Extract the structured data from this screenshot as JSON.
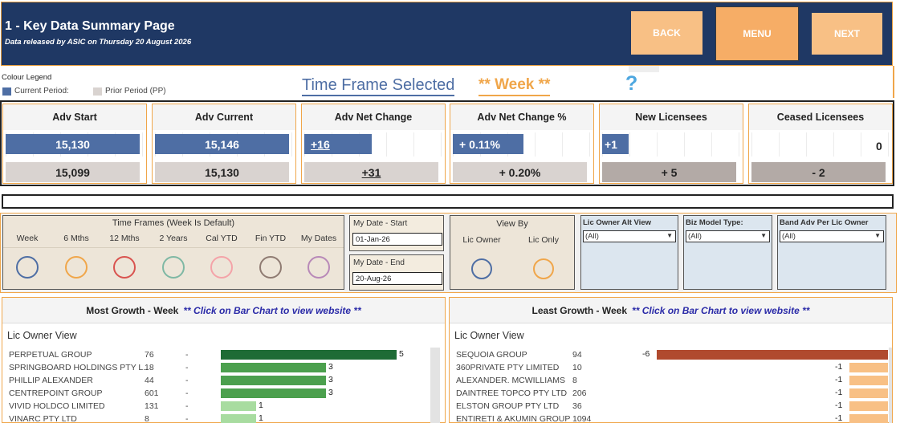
{
  "header": {
    "title": "1 - Key Data Summary Page",
    "subtitle": "Data released by ASIC on Thursday 20 August 2026",
    "back_label": "BACK",
    "menu_label": "MENU",
    "next_label": "NEXT"
  },
  "legend": {
    "title": "Colour Legend",
    "current_label": "Current Period:",
    "prior_label": "Prior Period (PP)",
    "current_color": "#4e6ea4",
    "prior_color": "#d9d3d0"
  },
  "timeframe": {
    "label": "Time Frame Selected",
    "value": "** Week **",
    "help_icon": "?"
  },
  "kpis": [
    {
      "title": "Adv Start",
      "current": "15,130",
      "prior": "15,099",
      "current_fill": 0.97,
      "prior_fill": 0.97
    },
    {
      "title": "Adv Current",
      "current": "15,146",
      "prior": "15,130",
      "current_fill": 0.97,
      "prior_fill": 0.97
    },
    {
      "title": "Adv Net Change",
      "current": "+16",
      "prior": "+31",
      "current_fill": 0.49,
      "prior_fill": 0.97
    },
    {
      "title": "Adv Net Change %",
      "current": "+ 0.11%",
      "prior": "+ 0.20%",
      "current_fill": 0.51,
      "prior_fill": 0.97
    },
    {
      "title": "New Licensees",
      "current": "+1",
      "prior": "+ 5",
      "current_fill": 0.19,
      "prior_fill": 0.97
    },
    {
      "title": "Ceased Licensees",
      "current": "0",
      "prior": "- 2",
      "current_fill": 0.0,
      "prior_fill": 0.97
    }
  ],
  "filters": {
    "time_frames_title": "Time Frames (Week Is Default)",
    "time_frames": [
      {
        "label": "Week",
        "color": "#4e6ea4"
      },
      {
        "label": "6 Mths",
        "color": "#f0a64a"
      },
      {
        "label": "12 Mths",
        "color": "#d9534f"
      },
      {
        "label": "2 Years",
        "color": "#7fb8a4"
      },
      {
        "label": "Cal YTD",
        "color": "#f4a3a8"
      },
      {
        "label": "Fin YTD",
        "color": "#8f7b72"
      },
      {
        "label": "My Dates",
        "color": "#b889b8"
      }
    ],
    "date_start_label": "My Date - Start",
    "date_start_value": "01-Jan-26",
    "date_end_label": "My Date - End",
    "date_end_value": "20-Aug-26",
    "view_by_title": "View By",
    "view_by_options": [
      {
        "label": "Lic Owner",
        "color": "#4e6ea4"
      },
      {
        "label": "Lic Only",
        "color": "#f0a64a"
      }
    ],
    "dropdowns": [
      {
        "title": "Lic Owner Alt View",
        "value": "(All)"
      },
      {
        "title": "Biz Model Type:",
        "value": "(All)"
      },
      {
        "title": "Band Adv Per Lic Owner",
        "value": "(All)"
      }
    ]
  },
  "most_growth": {
    "title": "Most Growth - Week",
    "hint": "** Click on Bar Chart to view website **",
    "subtitle": "Lic Owner View",
    "rows": [
      {
        "name": "PERPETUAL GROUP",
        "count": "76",
        "dash": "-",
        "value": 5,
        "value_label": "5",
        "color": "#1e6b35"
      },
      {
        "name": "SPRINGBOARD HOLDINGS PTY L..",
        "count": "18",
        "dash": "-",
        "value": 3,
        "value_label": "3",
        "color": "#4ca04e"
      },
      {
        "name": "PHILLIP ALEXANDER",
        "count": "44",
        "dash": "-",
        "value": 3,
        "value_label": "3",
        "color": "#4ca04e"
      },
      {
        "name": "CENTREPOINT GROUP",
        "count": "601",
        "dash": "-",
        "value": 3,
        "value_label": "3",
        "color": "#4ca04e"
      },
      {
        "name": "VIVID HOLDCO LIMITED",
        "count": "131",
        "dash": "-",
        "value": 1,
        "value_label": "1",
        "color": "#a8dca0"
      },
      {
        "name": "VINARC PTY LTD",
        "count": "8",
        "dash": "-",
        "value": 1,
        "value_label": "1",
        "color": "#a8dca0"
      }
    ]
  },
  "least_growth": {
    "title": "Least Growth - Week",
    "hint": "** Click on Bar Chart to view website **",
    "subtitle": "Lic Owner View",
    "rows": [
      {
        "name": "SEQUOIA GROUP",
        "count": "94",
        "value": -6,
        "value_label": "-6",
        "color": "#b04a2e"
      },
      {
        "name": "360PRIVATE PTY LIMITED",
        "count": "10",
        "value": -1,
        "value_label": "-1",
        "color": "#f8c085"
      },
      {
        "name": "ALEXANDER. MCWILLIAMS",
        "count": "8",
        "value": -1,
        "value_label": "-1",
        "color": "#f8c085"
      },
      {
        "name": "DAINTREE TOPCO PTY LTD",
        "count": "206",
        "value": -1,
        "value_label": "-1",
        "color": "#f8c085"
      },
      {
        "name": "ELSTON GROUP PTY LTD",
        "count": "36",
        "value": -1,
        "value_label": "-1",
        "color": "#f8c085"
      },
      {
        "name": "ENTIRETI & AKUMIN GROUP",
        "count": "1094",
        "value": -1,
        "value_label": "-1",
        "color": "#f8c085"
      }
    ]
  }
}
